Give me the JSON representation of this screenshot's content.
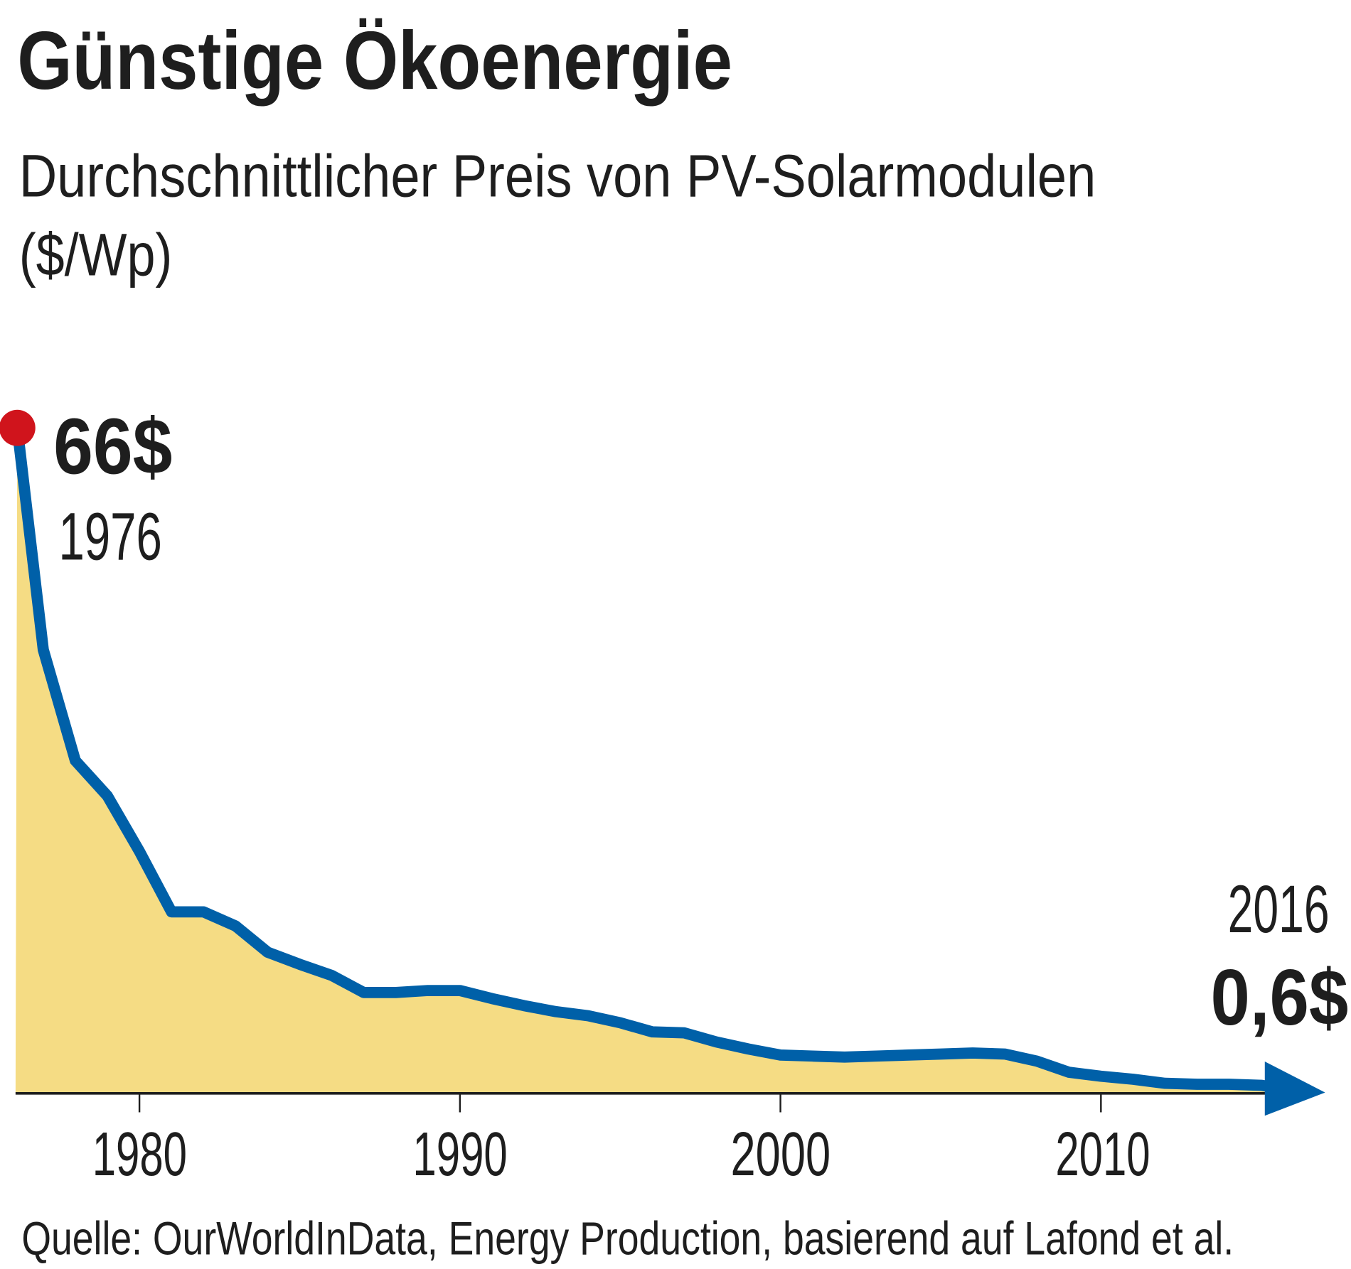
{
  "chart_data": {
    "type": "area",
    "title": "Günstige Ökoenergie",
    "subtitle_line1": "Durchschnittlicher Preis von PV-Solarmodulen",
    "subtitle_line2": "($/Wp)",
    "x": [
      1976,
      1977,
      1978,
      1979,
      1980,
      1981,
      1982,
      1983,
      1984,
      1985,
      1986,
      1987,
      1988,
      1989,
      1990,
      1991,
      1992,
      1993,
      1994,
      1995,
      1996,
      1997,
      1998,
      1999,
      2000,
      2001,
      2002,
      2003,
      2004,
      2005,
      2006,
      2007,
      2008,
      2009,
      2010,
      2011,
      2012,
      2013,
      2014,
      2015,
      2016
    ],
    "values": [
      66,
      44,
      33,
      29.5,
      24,
      18,
      18,
      16.6,
      14,
      12.8,
      11.7,
      10,
      10,
      10.2,
      10.2,
      9.4,
      8.7,
      8.1,
      7.7,
      7,
      6.1,
      6,
      5.1,
      4.4,
      3.8,
      3.7,
      3.6,
      3.7,
      3.8,
      3.9,
      4.0,
      3.9,
      3.2,
      2.1,
      1.7,
      1.4,
      1.0,
      0.9,
      0.9,
      0.8,
      0.6
    ],
    "xlim": [
      1976,
      2016
    ],
    "ylim": [
      0,
      66
    ],
    "x_ticks": [
      "1980",
      "1990",
      "2000",
      "2010"
    ],
    "grid": false,
    "colors": {
      "line": "#0060a8",
      "fill": "#f5dc84",
      "start_dot": "#d0141c",
      "axis": "#1e1e1e"
    },
    "annotations": {
      "start_value": "66$",
      "start_year": "1976",
      "end_year": "2016",
      "end_value": "0,6$"
    },
    "source": "Quelle: OurWorldInData, Energy Production, basierend auf Lafond et al."
  }
}
